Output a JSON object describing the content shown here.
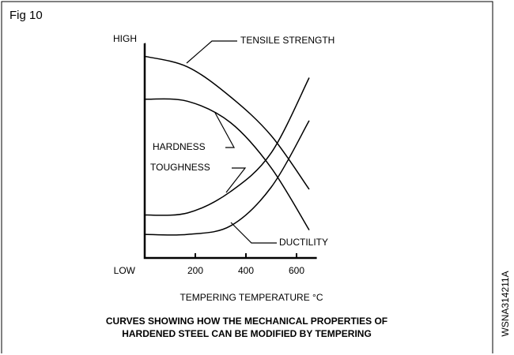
{
  "chart_data": {
    "type": "line",
    "figure_label": "Fig 10",
    "xlabel": "TEMPERING TEMPERATURE °C",
    "caption": [
      "CURVES SHOWING HOW THE MECHANICAL PROPERTIES OF",
      "HARDENED STEEL CAN BE MODIFIED BY TEMPERING"
    ],
    "code": "WSNA314211A",
    "x": [
      0,
      170,
      340,
      500,
      650
    ],
    "xlim": [
      0,
      680
    ],
    "xticks": [
      200,
      400,
      600
    ],
    "ylim": [
      0,
      100
    ],
    "yticks": [
      {
        "value": 0,
        "label": "LOW"
      },
      {
        "value": 100,
        "label": "HIGH"
      }
    ],
    "series": [
      {
        "name": "TENSILE STRENGTH",
        "color": "#000000",
        "values": [
          94,
          89,
          75,
          57,
          32
        ]
      },
      {
        "name": "HARDNESS",
        "color": "#000000",
        "values": [
          74,
          73,
          63,
          42,
          13
        ]
      },
      {
        "name": "TOUGHNESS",
        "color": "#000000",
        "values": [
          20,
          21,
          31,
          49,
          84
        ]
      },
      {
        "name": "DUCTILITY",
        "color": "#000000",
        "values": [
          11,
          11,
          15,
          33,
          64
        ]
      }
    ]
  }
}
